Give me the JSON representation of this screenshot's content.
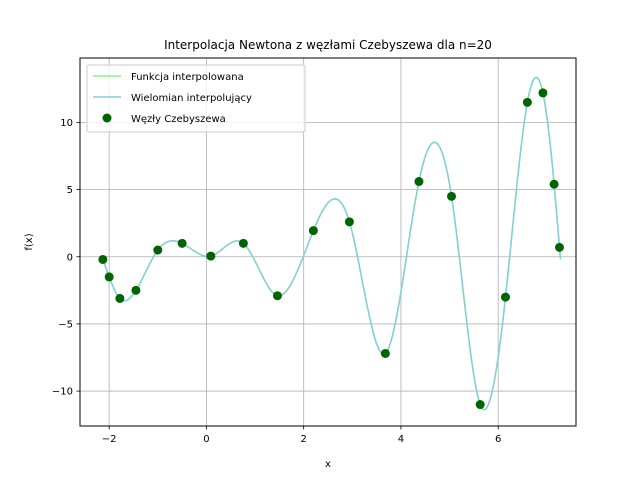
{
  "chart_data": {
    "type": "line",
    "title": "Interpolacja Newtona z węzłami Czebyszewa dla n=20",
    "xlabel": "x",
    "ylabel": "f(x)",
    "xlim": [
      -2.6,
      7.6
    ],
    "ylim": [
      -12.6,
      14.8
    ],
    "xticks": [
      -2,
      0,
      2,
      4,
      6
    ],
    "yticks": [
      -10,
      -5,
      0,
      5,
      10
    ],
    "xtick_labels": [
      "−2",
      "0",
      "2",
      "4",
      "6"
    ],
    "ytick_labels": [
      "−10",
      "−5",
      "0",
      "5",
      "10"
    ],
    "grid": true,
    "legend_position": "top-left",
    "colors": {
      "function": "#90ee90",
      "polynomial": "#87ceda",
      "nodes": "#006400",
      "grid": "#b0b0b0"
    },
    "series": [
      {
        "name": "Funkcja interpolowana",
        "kind": "line",
        "x_range": [
          -2.14,
          7.28
        ]
      },
      {
        "name": "Wielomian interpolujący",
        "kind": "line",
        "x_range": [
          -2.14,
          7.28
        ]
      },
      {
        "name": "Węzły Czebyszewa",
        "kind": "scatter",
        "x": [
          -2.13,
          -2.0,
          -1.78,
          -1.45,
          -1.0,
          -0.5,
          0.09,
          0.76,
          1.46,
          2.2,
          2.94,
          3.68,
          4.37,
          5.04,
          5.63,
          6.15,
          6.6,
          6.92,
          7.15,
          7.26
        ],
        "y": [
          -0.2,
          -1.5,
          -3.1,
          -2.5,
          0.5,
          1.0,
          0.05,
          1.0,
          -2.9,
          1.95,
          2.6,
          -7.2,
          5.6,
          4.5,
          -11.0,
          -3.0,
          11.5,
          12.2,
          5.4,
          0.7
        ]
      }
    ]
  }
}
